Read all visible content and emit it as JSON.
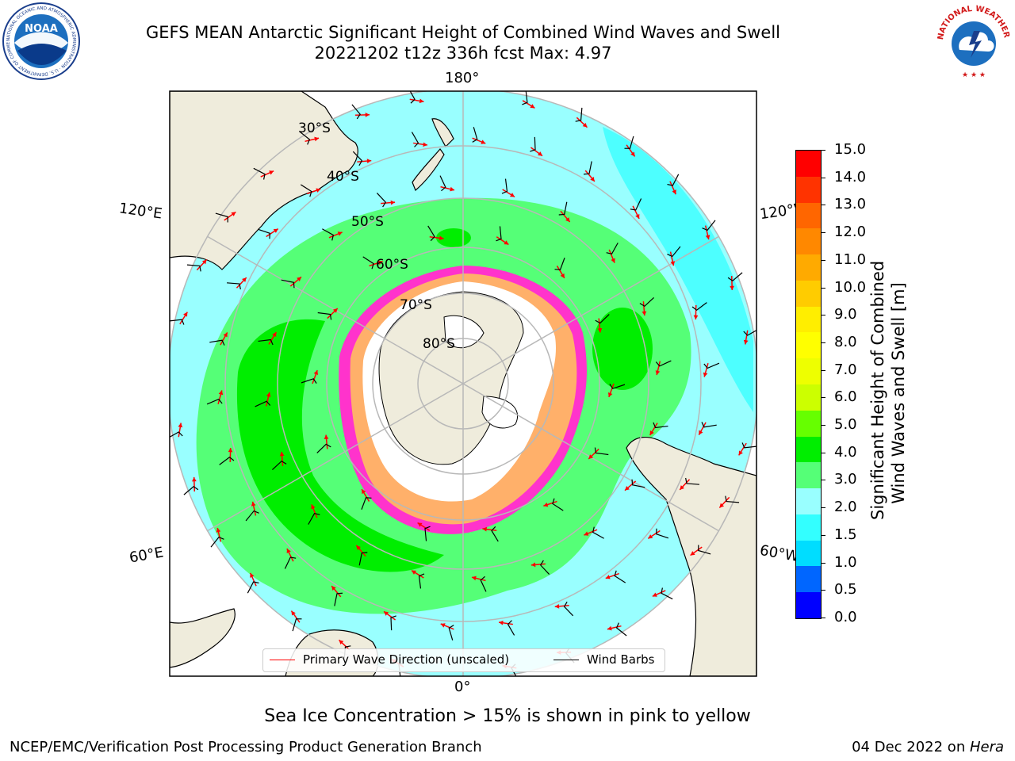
{
  "header": {
    "title_line1": "GEFS MEAN Antarctic Significant Height of Combined Wind Waves and Swell",
    "title_line2": "20221202 t12z 336h fcst   Max: 4.97"
  },
  "logos": {
    "left": {
      "name": "NOAA",
      "icon": "noaa-logo",
      "ring_text": "NATIONAL OCEANIC AND ATMOSPHERIC ADMINISTRATION · U.S. DEPARTMENT OF COMMERCE"
    },
    "right": {
      "name": "NATIONAL WEATHER SERVICE",
      "icon": "nws-logo"
    }
  },
  "map": {
    "projection": "south polar stereographic",
    "colors": {
      "land": "#efecdc",
      "coast": "#000000",
      "grid": "#b8b8b8",
      "ice": "#ffffff",
      "ice_edge": "#ff33cc",
      "ice_mid": "#ff9966"
    },
    "longitude_labels": [
      "180°",
      "120°E",
      "120°W",
      "60°E",
      "60°W",
      "0°"
    ],
    "latitude_labels": [
      "30°S",
      "40°S",
      "50°S",
      "60°S",
      "70°S",
      "80°S"
    ]
  },
  "legend": {
    "wave_direction": {
      "label": "Primary Wave Direction (unscaled)",
      "color": "#ff0000"
    },
    "wind_barbs": {
      "label": "Wind Barbs",
      "color": "#000000"
    }
  },
  "colorbar": {
    "label": "Significant Height of Combined\nWind Waves and Swell [m]",
    "ticks": [
      "15.0",
      "14.0",
      "13.0",
      "12.0",
      "11.0",
      "10.0",
      "9.0",
      "8.0",
      "7.0",
      "6.0",
      "5.0",
      "4.0",
      "3.0",
      "2.0",
      "1.5",
      "1.0",
      "0.5",
      "0.0"
    ],
    "colors": [
      "#0000ff",
      "#0066ff",
      "#00ddff",
      "#33ffff",
      "#99ffff",
      "#55ff77",
      "#00ee00",
      "#66ff00",
      "#ccff00",
      "#eeff00",
      "#ffff00",
      "#ffee00",
      "#ffcc00",
      "#ffaa00",
      "#ff8800",
      "#ff6600",
      "#ff3300",
      "#ff0000"
    ]
  },
  "caption": "Sea Ice Concentration > 15% is shown in pink to yellow",
  "footer": {
    "left": "NCEP/EMC/Verification Post Processing Product Generation Branch",
    "date": "04 Dec 2022 on ",
    "system": "Hera"
  }
}
